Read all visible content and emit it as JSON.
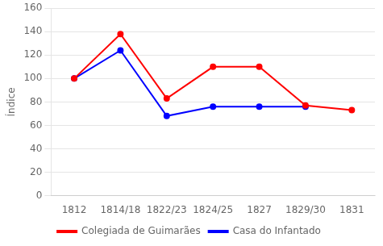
{
  "chart_data": {
    "type": "line",
    "categories": [
      "1812",
      "1814/18",
      "1822/23",
      "1824/25",
      "1827",
      "1829/30",
      "1831"
    ],
    "series": [
      {
        "name": "Colegiada de Guimarães",
        "color": "#ff0000",
        "values": [
          100,
          138,
          83,
          110,
          110,
          77,
          73
        ]
      },
      {
        "name": "Casa do Infantado",
        "color": "#0000ff",
        "values": [
          100,
          124,
          68,
          76,
          76,
          76,
          null
        ]
      }
    ],
    "ylabel": "Índice",
    "ylim": [
      0,
      160
    ],
    "yticks": [
      0,
      20,
      40,
      60,
      80,
      100,
      120,
      140,
      160
    ],
    "grid": "y",
    "legend": "bottom"
  }
}
